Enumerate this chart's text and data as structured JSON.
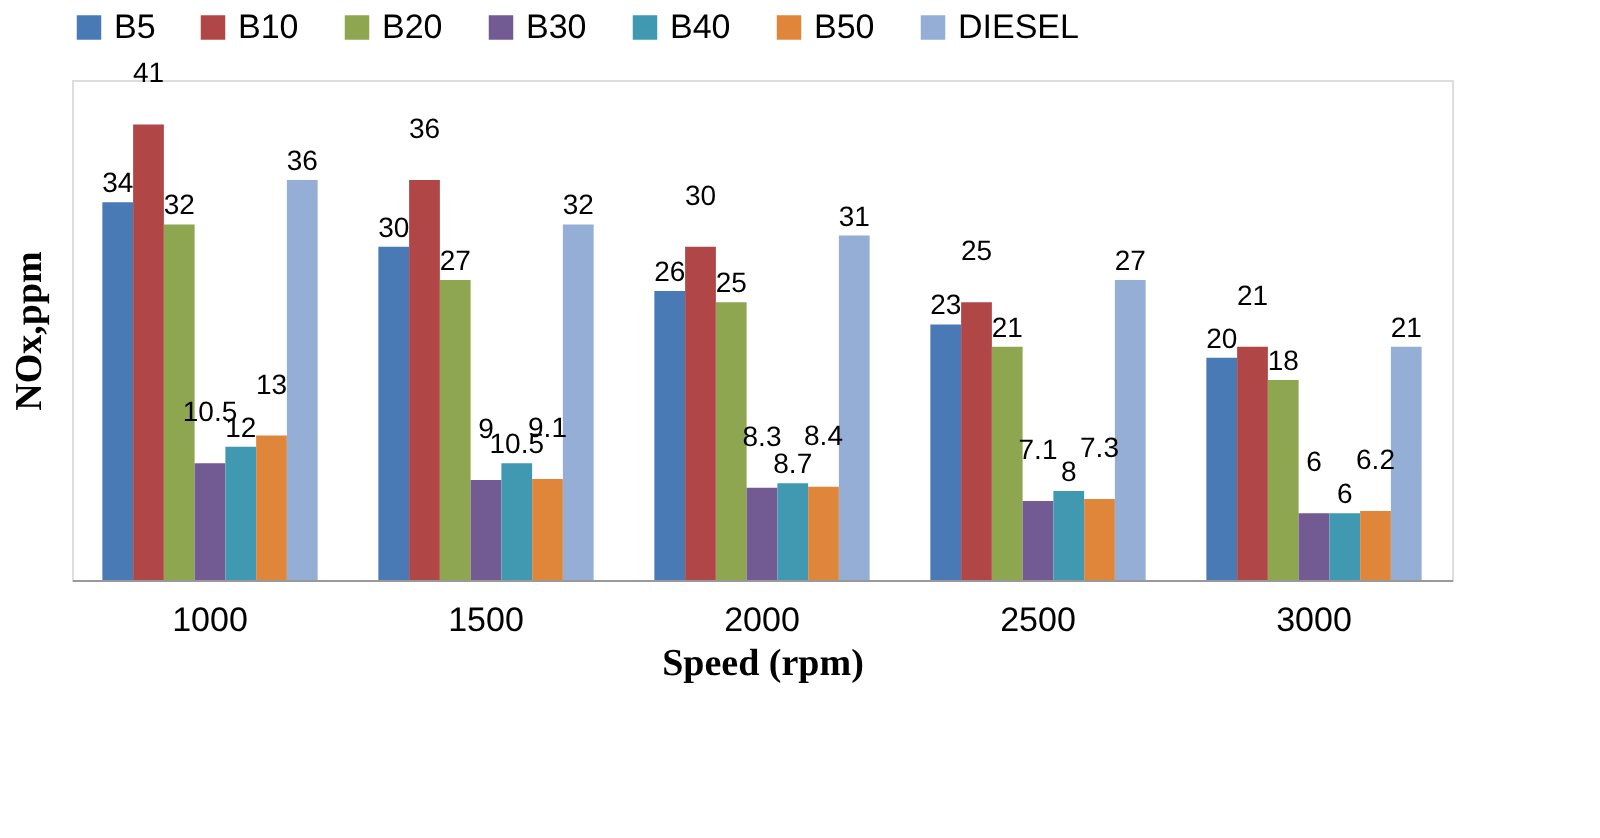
{
  "chart_data": {
    "type": "bar",
    "xlabel": "Speed (rpm)",
    "ylabel": "NOx,ppm",
    "categories": [
      "1000",
      "1500",
      "2000",
      "2500",
      "3000"
    ],
    "series": [
      {
        "name": "B5",
        "color": "#4a7ab5",
        "values": [
          34,
          30,
          26,
          23,
          20
        ]
      },
      {
        "name": "B10",
        "color": "#b04645",
        "values": [
          41,
          36,
          30,
          25,
          21
        ]
      },
      {
        "name": "B20",
        "color": "#8ea64f",
        "values": [
          32,
          27,
          25,
          21,
          18
        ]
      },
      {
        "name": "B30",
        "color": "#725a93",
        "values": [
          10.5,
          9,
          8.3,
          7.1,
          6
        ]
      },
      {
        "name": "B40",
        "color": "#4099b0",
        "values": [
          12,
          10.5,
          8.7,
          8,
          6
        ]
      },
      {
        "name": "B50",
        "color": "#e0863b",
        "values": [
          13,
          9.1,
          8.4,
          7.3,
          6.2
        ]
      },
      {
        "name": "DIESEL",
        "color": "#94aed6",
        "values": [
          36,
          32,
          31,
          27,
          21
        ]
      }
    ],
    "data_labels": true,
    "legend": "top",
    "grid": false,
    "tick_labels": "x"
  }
}
